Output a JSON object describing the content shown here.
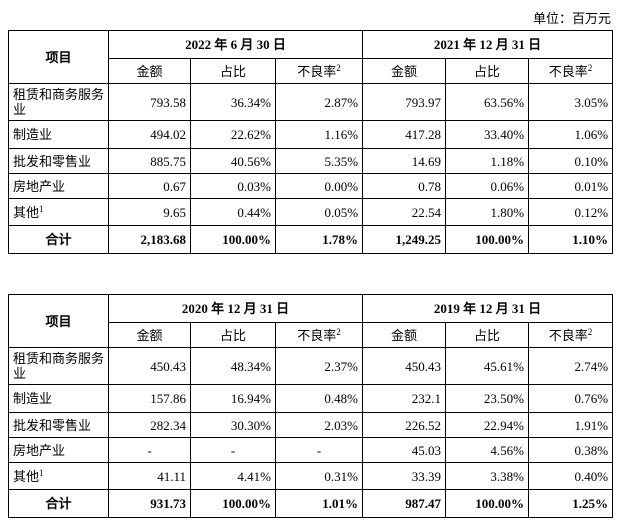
{
  "unit": "单位：百万元",
  "tables": [
    {
      "row_header": "项目",
      "periods": [
        "2022 年 6 月 30 日",
        "2021 年 12 月 31 日"
      ],
      "columns": [
        "金额",
        "占比",
        "不良率"
      ],
      "column_note": "2",
      "rows": [
        {
          "label": "租赁和商务服务业",
          "values": [
            "793.58",
            "36.34%",
            "2.87%",
            "793.97",
            "63.56%",
            "3.05%"
          ]
        },
        {
          "label": "制造业",
          "values": [
            "494.02",
            "22.62%",
            "1.16%",
            "417.28",
            "33.40%",
            "1.06%"
          ]
        },
        {
          "label": "批发和零售业",
          "values": [
            "885.75",
            "40.56%",
            "5.35%",
            "14.69",
            "1.18%",
            "0.10%"
          ]
        },
        {
          "label": "房地产业",
          "values": [
            "0.67",
            "0.03%",
            "0.00%",
            "0.78",
            "0.06%",
            "0.01%"
          ]
        },
        {
          "label": "其他",
          "note": "1",
          "values": [
            "9.65",
            "0.44%",
            "0.05%",
            "22.54",
            "1.80%",
            "0.12%"
          ]
        },
        {
          "label": "合计",
          "values": [
            "2,183.68",
            "100.00%",
            "1.78%",
            "1,249.25",
            "100.00%",
            "1.10%"
          ]
        }
      ]
    },
    {
      "row_header": "项目",
      "periods": [
        "2020 年 12 月 31 日",
        "2019 年 12 月 31 日"
      ],
      "columns": [
        "金额",
        "占比",
        "不良率"
      ],
      "column_note": "2",
      "rows": [
        {
          "label": "租赁和商务服务业",
          "values": [
            "450.43",
            "48.34%",
            "2.37%",
            "450.43",
            "45.61%",
            "2.74%"
          ]
        },
        {
          "label": "制造业",
          "values": [
            "157.86",
            "16.94%",
            "0.48%",
            "232.1",
            "23.50%",
            "0.76%"
          ]
        },
        {
          "label": "批发和零售业",
          "values": [
            "282.34",
            "30.30%",
            "2.03%",
            "226.52",
            "22.94%",
            "1.91%"
          ]
        },
        {
          "label": "房地产业",
          "values": [
            "-",
            "-",
            "-",
            "45.03",
            "4.56%",
            "0.38%"
          ]
        },
        {
          "label": "其他",
          "note": "1",
          "values": [
            "41.11",
            "4.41%",
            "0.31%",
            "33.39",
            "3.38%",
            "0.40%"
          ]
        },
        {
          "label": "合计",
          "values": [
            "931.73",
            "100.00%",
            "1.01%",
            "987.47",
            "100.00%",
            "1.25%"
          ]
        }
      ]
    }
  ]
}
